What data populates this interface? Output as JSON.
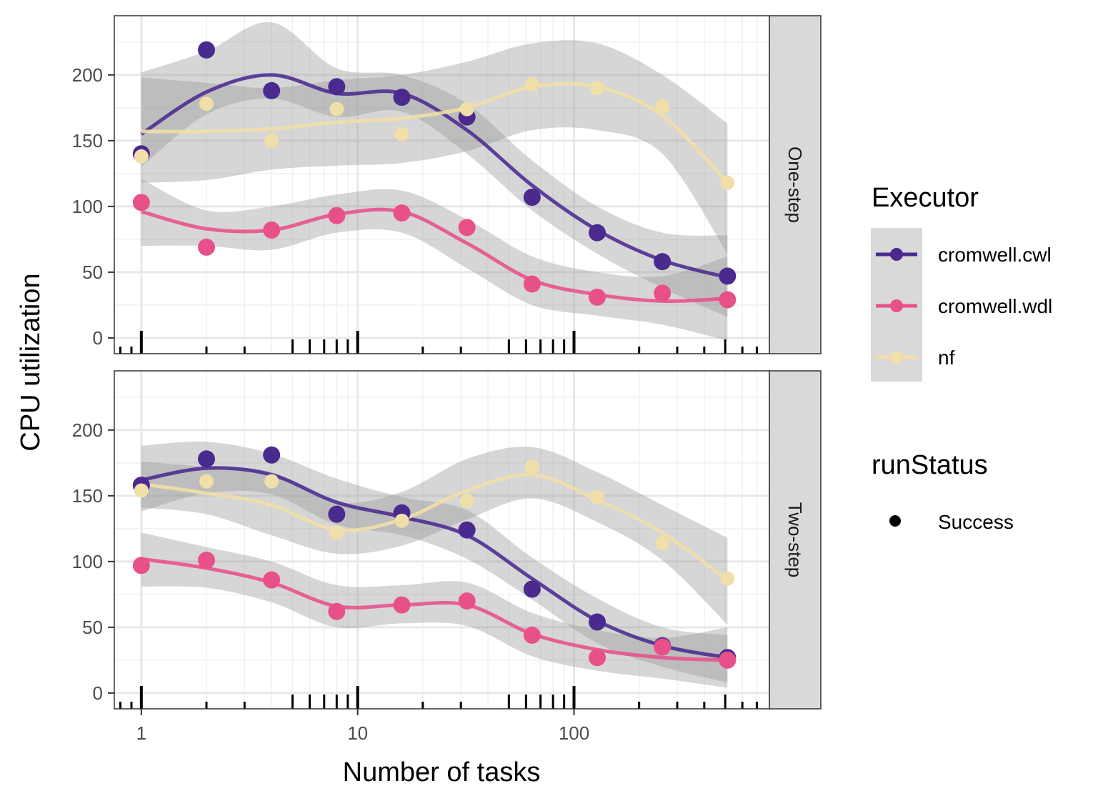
{
  "chart_data": {
    "type": "scatter",
    "xlabel": "Number of tasks",
    "ylabel": "CPU utilization",
    "x_scale": "log10",
    "x_ticks": [
      1,
      10,
      100
    ],
    "x_tick_labels": [
      "1",
      "10",
      "100"
    ],
    "xlim": [
      0.75,
      800
    ],
    "y_ticks": [
      0,
      50,
      100,
      150,
      200
    ],
    "y_tick_labels": [
      "0",
      "50",
      "100",
      "150",
      "200"
    ],
    "ylim": [
      -12,
      245
    ],
    "grid": true,
    "legend_position": "right",
    "legend": {
      "color_title": "Executor",
      "shape_title": "runStatus",
      "shape_entries": [
        {
          "label": "Success"
        }
      ]
    },
    "series_colors": {
      "cromwell.cwl": "#4a2a8f",
      "cromwell.wdl": "#e8508a",
      "nf": "#f1dfa9"
    },
    "x": [
      1,
      2,
      4,
      8,
      16,
      32,
      64,
      128,
      256,
      512
    ],
    "panels": [
      {
        "strip": "One-step",
        "series": [
          {
            "name": "cromwell.cwl",
            "values": [
              140,
              219,
              188,
              191,
              183,
              168,
              107,
              80,
              58,
              47
            ],
            "smooth": [
              155,
              187,
              200,
              186,
              186,
              158,
              116,
              82,
              59,
              46
            ],
            "band_lo": [
              130,
              170,
              182,
              168,
              172,
              140,
              97,
              64,
              38,
              16
            ],
            "band_hi": [
              202,
              218,
              240,
              205,
              200,
              178,
              135,
              100,
              80,
              78
            ]
          },
          {
            "name": "cromwell.wdl",
            "values": [
              103,
              69,
              82,
              93,
              95,
              84,
              41,
              31,
              34,
              29
            ],
            "smooth": [
              96,
              83,
              82,
              94,
              96,
              72,
              44,
              33,
              28,
              30
            ],
            "band_lo": [
              70,
              70,
              67,
              80,
              80,
              53,
              25,
              17,
              10,
              -2
            ],
            "band_hi": [
              121,
              97,
              100,
              109,
              112,
              90,
              62,
              50,
              47,
              62
            ]
          },
          {
            "name": "nf",
            "values": [
              138,
              178,
              150,
              174,
              155,
              174,
              193,
              190,
              176,
              118
            ],
            "smooth": [
              157,
              157,
              159,
              164,
              167,
              175,
              191,
              191,
              169,
              118
            ],
            "band_lo": [
              118,
              120,
              128,
              131,
              133,
              142,
              158,
              158,
              140,
              64
            ],
            "band_hi": [
              198,
              194,
              190,
              196,
              200,
              210,
              224,
              224,
              200,
              163
            ]
          }
        ]
      },
      {
        "strip": "Two-step",
        "series": [
          {
            "name": "cromwell.cwl",
            "values": [
              158,
              178,
              181,
              136,
              137,
              124,
              79,
              54,
              36,
              27
            ],
            "smooth": [
              162,
              171,
              166,
              145,
              134,
              120,
              87,
              55,
              36,
              27
            ],
            "band_lo": [
              138,
              152,
              151,
              128,
              120,
              102,
              71,
              38,
              20,
              8
            ],
            "band_hi": [
              188,
              191,
              182,
              163,
              149,
              139,
              103,
              72,
              50,
              44
            ]
          },
          {
            "name": "cromwell.wdl",
            "values": [
              97,
              101,
              86,
              62,
              67,
              70,
              44,
              27,
              35,
              25
            ],
            "smooth": [
              102,
              95,
              84,
              66,
              67,
              67,
              45,
              33,
              27,
              25
            ],
            "band_lo": [
              81,
              80,
              69,
              50,
              53,
              51,
              28,
              17,
              11,
              4
            ],
            "band_hi": [
              122,
              111,
              100,
              82,
              82,
              84,
              61,
              48,
              42,
              50
            ]
          },
          {
            "name": "nf",
            "values": [
              154,
              161,
              161,
              122,
              131,
              146,
              172,
              149,
              114,
              87
            ],
            "smooth": [
              159,
              152,
              143,
              124,
              132,
              154,
              166,
              147,
              122,
              86
            ],
            "band_lo": [
              141,
              136,
              120,
              106,
              112,
              132,
              148,
              130,
              101,
              52
            ],
            "band_hi": [
              176,
              172,
              168,
              145,
              153,
              178,
              187,
              168,
              143,
              118
            ]
          }
        ]
      }
    ]
  }
}
